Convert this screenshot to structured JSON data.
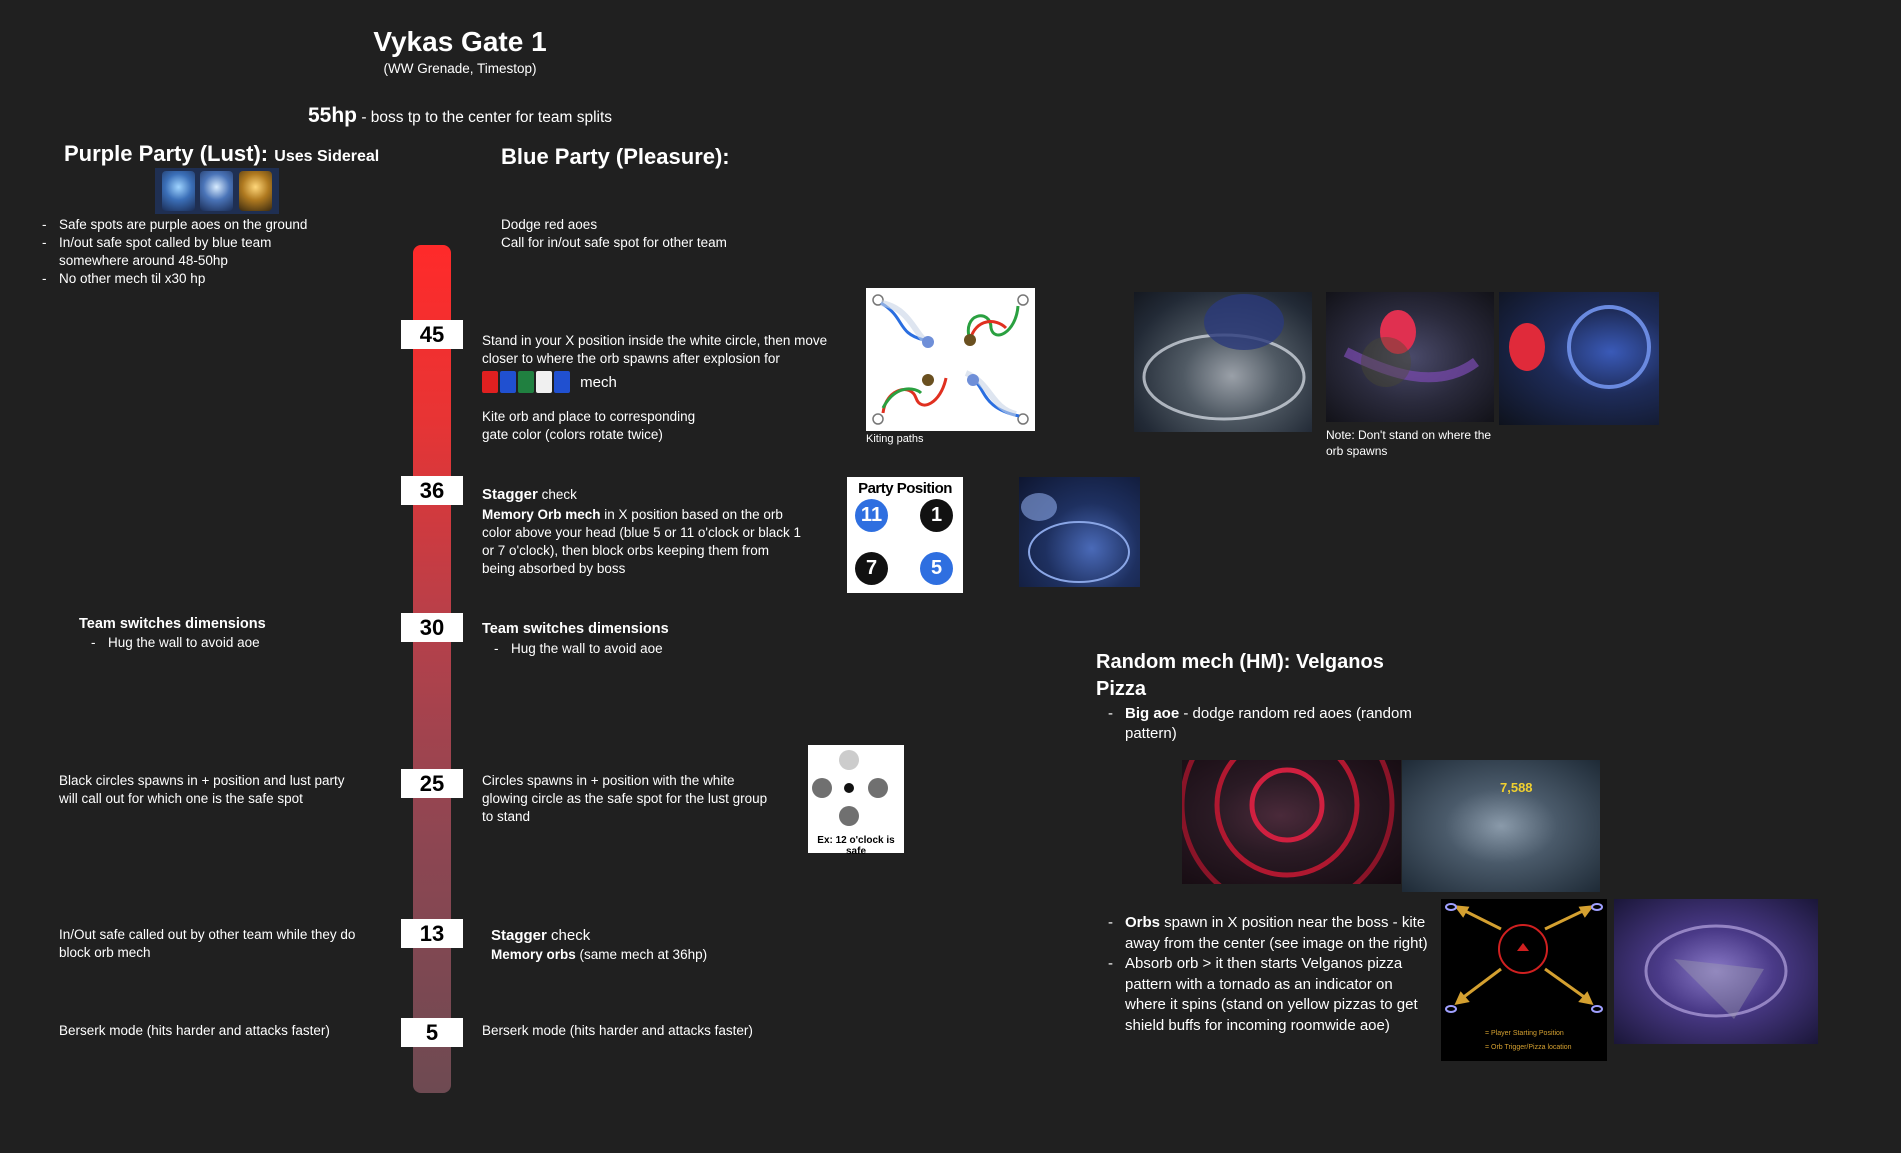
{
  "header": {
    "title": "Vykas Gate 1",
    "subtitle": "(WW Grenade, Timestop)",
    "hp_value": "55hp",
    "hp_desc": " - boss tp to the center for team splits"
  },
  "purple_party": {
    "name": "Purple Party (Lust):",
    "note": "Uses Sidereal",
    "icons": [
      "lifestone-icon",
      "card-icon",
      "gold-card-icon"
    ],
    "intro": [
      "Safe spots are purple aoes on the ground",
      "In/out safe spot called by blue team somewhere around 48-50hp",
      "No other mech til x30 hp"
    ],
    "hp30_title": "Team switches dimensions",
    "hp30_item": "Hug the wall to avoid aoe",
    "hp25": "Black circles spawns in + position and lust party will call out for which one is the safe spot",
    "hp13": "In/Out safe called out by other team while they do block orb mech",
    "hp5": "Berserk mode (hits harder and attacks faster)"
  },
  "blue_party": {
    "name": "Blue Party (Pleasure):",
    "intro_1": "Dodge red aoes",
    "intro_2": "Call for in/out safe spot for other team",
    "hp45_text": "Stand in your X position inside the white circle, then move closer to where the orb spawns after explosion for",
    "hp45_gates": [
      "R",
      "B",
      "G",
      "W",
      "B"
    ],
    "hp45_mech": "mech",
    "hp45_kite": "Kite orb and place to corresponding gate color (colors rotate twice)",
    "kiting_caption": "Kiting paths",
    "orb_note": "Note: Don't stand on where the orb spawns",
    "hp36_stagger": "Stagger",
    "hp36_check": " check",
    "hp36_memory_bold": "Memory Orb mech",
    "hp36_memory_text": " in X position based on the orb color above your head (blue 5 or 11 o'clock or black 1 or 7 o'clock), then block orbs keeping them from being absorbed by boss",
    "party_position_title": "Party Position",
    "party_positions": [
      "11",
      "1",
      "7",
      "5"
    ],
    "hp30_title": "Team switches dimensions",
    "hp30_item": "Hug the wall to avoid aoe",
    "hp25": "Circles spawns in + position with the white glowing circle as the safe spot for the lust group to stand",
    "circles_caption": "Ex: 12 o'clock is safe",
    "hp13_stagger": "Stagger",
    "hp13_check": " check",
    "hp13_memory_bold": "Memory orbs",
    "hp13_memory_text": " (same mech at 36hp)",
    "hp5": "Berserk mode (hits harder and attacks faster)"
  },
  "hp_markers": [
    "45",
    "36",
    "30",
    "25",
    "13",
    "5"
  ],
  "random_mech": {
    "title": "Random mech (HM): Velganos Pizza",
    "big_aoe_bold": "Big aoe",
    "big_aoe_text": " - dodge random red aoes (random pattern)",
    "damage_number": "7,588",
    "orbs_bold": "Orbs",
    "orbs_text": " spawn in X position near the boss - kite away from the center (see image on the right)",
    "absorb_text": "Absorb orb > it then starts Velganos pizza pattern with a tornado as an indicator on where it spins (stand on yellow pizzas to get shield buffs for incoming roomwide aoe)",
    "legend_player": "= Player Starting Position",
    "legend_orb": "= Orb Trigger/Pizza location"
  },
  "colors": {
    "background": "#202020",
    "bar_top": "#ff2a2a",
    "bar_bottom": "#6e4a52",
    "gate_red": "#e02020",
    "gate_blue": "#2050d0",
    "gate_green": "#208040",
    "gate_white": "#f0f0f0",
    "party_blue": "#2f6fe0",
    "party_black": "#111111"
  }
}
